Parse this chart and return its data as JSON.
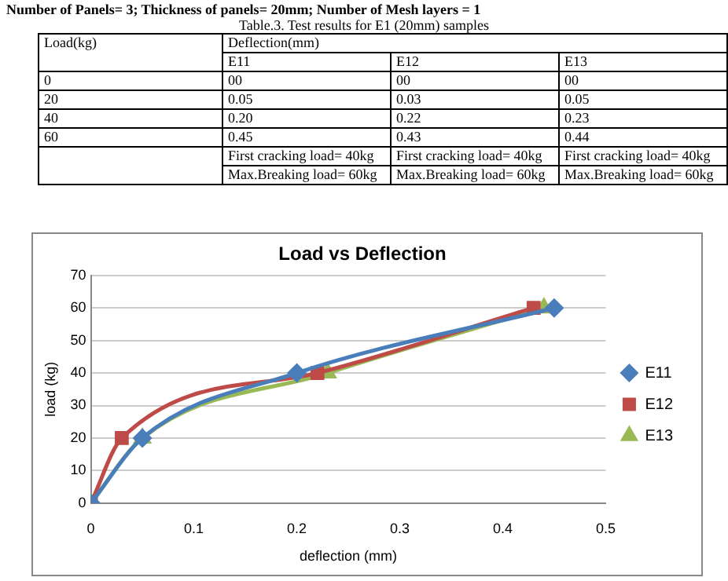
{
  "chart_data": {
    "type": "line",
    "title": "Load vs Deflection",
    "xlabel": "deflection (mm)",
    "ylabel": "load (kg)",
    "series": [
      {
        "name": "E11",
        "color": "#4a7ebb",
        "marker": "diamond",
        "x": [
          0,
          0.05,
          0.2,
          0.45
        ],
        "values": [
          0,
          20,
          40,
          60
        ]
      },
      {
        "name": "E12",
        "color": "#be4b48",
        "marker": "square",
        "x": [
          0,
          0.03,
          0.22,
          0.43
        ],
        "values": [
          0,
          20,
          40,
          60
        ]
      },
      {
        "name": "E13",
        "color": "#98b954",
        "marker": "triangle",
        "x": [
          0,
          0.05,
          0.23,
          0.44
        ],
        "values": [
          0,
          20,
          40,
          60
        ]
      }
    ],
    "xlim": [
      0,
      0.5
    ],
    "xticks": [
      0,
      0.1,
      0.2,
      0.3,
      0.4,
      0.5
    ],
    "ylim": [
      0,
      70
    ],
    "yticks": [
      0,
      10,
      20,
      30,
      40,
      50,
      60,
      70
    ],
    "grid": "y",
    "legend": "right",
    "line_style": "solid",
    "annotations": [
      "Number of Panels= 3; Thickness of panels= 20mm; Number of Mesh layers = 1",
      "Table.3. Test results for E1 (20mm) samples",
      "Load(kg)",
      "Deflection(mm)",
      "E11",
      "E12",
      "E13",
      "0",
      "00",
      "00",
      "00",
      "20",
      "0.05",
      "0.03",
      "0.05",
      "40",
      "0.20",
      "0.22",
      "0.23",
      "60",
      "0.45",
      "0.43",
      "0.44",
      "First cracking load= 40kg",
      "First cracking load= 40kg",
      "First cracking load= 40kg",
      "Max.Breaking load= 60kg",
      "Max.Breaking load= 60kg",
      "Max.Breaking load= 60kg"
    ]
  }
}
